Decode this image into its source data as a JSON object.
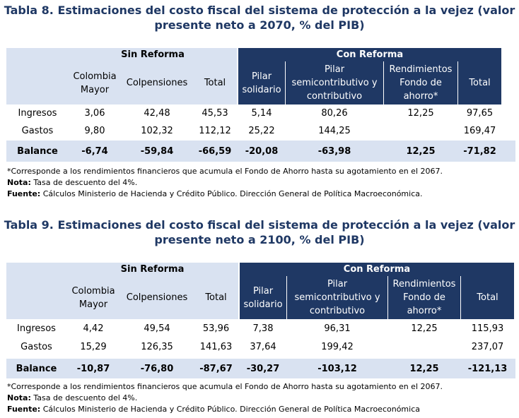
{
  "tables": [
    {
      "title_line1": "Tabla 8. Estimaciones del costo fiscal del sistema de protección a la vejez (valor",
      "title_line2": "presente neto a 2070, % del PIB)",
      "group_sin": "Sin Reforma",
      "group_con": "Con Reforma",
      "col_colombia_mayor": "Colombia Mayor",
      "col_colpensiones": "Colpensiones",
      "col_total_sin": "Total",
      "col_pilar_solidario": "Pilar solidario",
      "col_pilar_semi": "Pilar semicontributivo y contributivo",
      "col_rendimientos": "Rendimientos Fondo de ahorro*",
      "col_total_con": "Total",
      "rows": [
        {
          "label": "Ingresos",
          "values": [
            "3,06",
            "42,48",
            "45,53",
            "5,14",
            "80,26",
            "12,25",
            "97,65"
          ]
        },
        {
          "label": "Gastos",
          "values": [
            "9,80",
            "102,32",
            "112,12",
            "25,22",
            "144,25",
            "",
            "169,47"
          ]
        },
        {
          "label": "Balance",
          "values": [
            "-6,74",
            "-59,84",
            "-66,59",
            "-20,08",
            "-63,98",
            "12,25",
            "-71,82"
          ]
        }
      ],
      "footnote": "*Corresponde a los rendimientos financieros que acumula el Fondo de Ahorro hasta su agotamiento en el 2067.",
      "nota_label": "Nota:",
      "nota_text": " Tasa de descuento del 4%.",
      "fuente_label": "Fuente:",
      "fuente_text": " Cálculos Ministerio de Hacienda y Crédito Público. Dirección General de Política Macroeconómica."
    },
    {
      "title_line1": "Tabla 9. Estimaciones del costo fiscal del sistema de protección a la vejez (valor",
      "title_line2": "presente neto a 2100, % del PIB)",
      "group_sin": "Sin Reforma",
      "group_con": "Con Reforma",
      "col_colombia_mayor": "Colombia Mayor",
      "col_colpensiones": "Colpensiones",
      "col_total_sin": "Total",
      "col_pilar_solidario": "Pilar solidario",
      "col_pilar_semi": "Pilar semicontributivo y contributivo",
      "col_rendimientos": "Rendimientos Fondo de ahorro*",
      "col_total_con": "Total",
      "rows": [
        {
          "label": "Ingresos",
          "values": [
            "4,42",
            "49,54",
            "53,96",
            "7,38",
            "96,31",
            "12,25",
            "115,93"
          ]
        },
        {
          "label": "Gastos",
          "values": [
            "15,29",
            "126,35",
            "141,63",
            "37,64",
            "199,42",
            "",
            "237,07"
          ]
        },
        {
          "label": "Balance",
          "values": [
            "-10,87",
            "-76,80",
            "-87,67",
            "-30,27",
            "-103,12",
            "12,25",
            "-121,13"
          ]
        }
      ],
      "footnote": "*Corresponde a los rendimientos financieros que acumula el Fondo de Ahorro hasta su agotamiento en el 2067.",
      "nota_label": "Nota:",
      "nota_text": " Tasa de descuento del 4%.",
      "fuente_label": "Fuente:",
      "fuente_text": " Cálculos Ministerio de Hacienda y Crédito Público. Dirección General de Política Macroeconómica"
    }
  ]
}
